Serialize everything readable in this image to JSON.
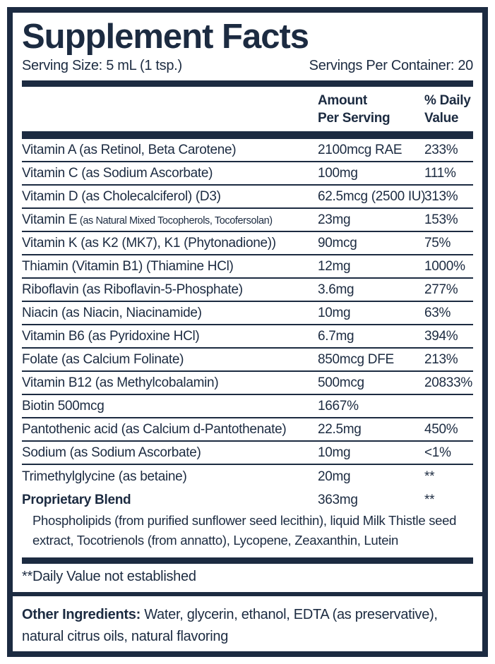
{
  "title": "Supplement Facts",
  "serving_size": "Serving Size: 5 mL (1 tsp.)",
  "servings_per_container": "Servings Per Container: 20",
  "columns": {
    "amount": "Amount\nPer Serving",
    "daily": "% Daily\nValue"
  },
  "rows": [
    {
      "label": "Vitamin A  (as Retinol, Beta Carotene)",
      "amount": "2100mcg RAE",
      "dv": "233%"
    },
    {
      "label": "Vitamin C (as Sodium Ascorbate)",
      "amount": "100mg",
      "dv": "111%"
    },
    {
      "label": "Vitamin D (as Cholecalciferol) (D3)",
      "amount": "62.5mcg (2500 IU)",
      "dv": "313%"
    },
    {
      "label": "Vitamin E",
      "label_small": "(as Natural Mixed Tocopherols, Tocofersolan)",
      "amount": "23mg",
      "dv": "153%"
    },
    {
      "label": "Vitamin K (as K2 (MK7), K1 (Phytonadione))",
      "amount": "90mcg",
      "dv": "75%"
    },
    {
      "label": "Thiamin (Vitamin B1) (Thiamine HCl)",
      "amount": "12mg",
      "dv": "1000%"
    },
    {
      "label": "Riboflavin (as Riboflavin-5-Phosphate)",
      "amount": "3.6mg",
      "dv": "277%"
    },
    {
      "label": "Niacin (as Niacin, Niacinamide)",
      "amount": "10mg",
      "dv": "63%"
    },
    {
      "label": "Vitamin B6  (as Pyridoxine HCl)",
      "amount": "6.7mg",
      "dv": "394%"
    },
    {
      "label": "Folate (as Calcium Folinate)",
      "amount": "850mcg DFE",
      "dv": "213%"
    },
    {
      "label": "Vitamin B12  (as Methylcobalamin)",
      "amount": "500mcg",
      "dv": "20833%"
    },
    {
      "label": "Biotin 500mcg",
      "amount": "1667%",
      "dv": ""
    },
    {
      "label": "Pantothenic acid (as Calcium d-Pantothenate)",
      "amount": "22.5mg",
      "dv": "450%"
    },
    {
      "label": "Sodium (as Sodium Ascorbate)",
      "amount": "10mg",
      "dv": "<1%"
    },
    {
      "label": "Trimethylglycine (as betaine)",
      "amount": "20mg",
      "dv": "**"
    }
  ],
  "proprietary": {
    "name": "Proprietary Blend",
    "amount": "363mg",
    "dv": "**",
    "description": "Phospholipids (from purified sunflower seed lecithin), liquid Milk Thistle seed extract, Tocotrienols (from annatto), Lycopene, Zeaxanthin, Lutein"
  },
  "footnote": "**Daily Value not established",
  "other_ingredients": {
    "label": "Other Ingredients:",
    "text": "Water, glycerin, ethanol,  EDTA (as preservative), natural citrus oils, natural flavoring"
  },
  "colors": {
    "navy": "#1c2b41",
    "background": "#ffffff"
  }
}
